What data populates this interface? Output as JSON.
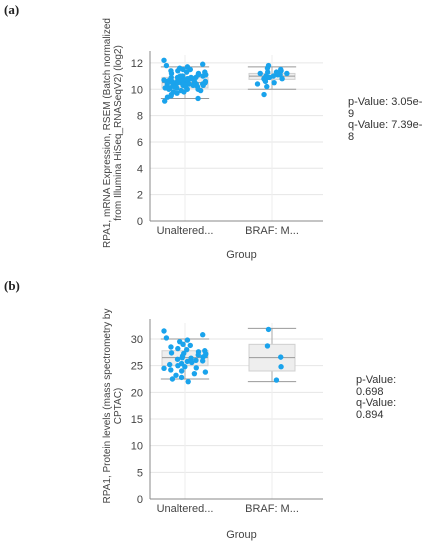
{
  "panels": [
    {
      "label": "(a)",
      "p_value": "p-Value: 3.05e-9",
      "q_value": "q-Value: 7.39e-8"
    },
    {
      "label": "(b)",
      "p_value": "p-Value: 0.698",
      "q_value": "q-Value: 0.894"
    }
  ],
  "chart_data": [
    {
      "type": "box",
      "xlabel": "Group",
      "ylabel_lines": [
        "RPA1, mRNA Expression, RSEM (Batch normalized",
        "from Illumina HiSeq_RNASeqV2) (log2)"
      ],
      "categories": [
        "Unaltered...",
        "BRAF: M..."
      ],
      "yticks": [
        0,
        2,
        4,
        6,
        8,
        10,
        12
      ],
      "ylim": [
        0,
        12.6
      ],
      "grid": true,
      "point_color": "#1aa3ec",
      "boxes": [
        {
          "category": "Unaltered...",
          "whisker_low": 9.3,
          "q1": 10.1,
          "median": 10.5,
          "q3": 10.9,
          "whisker_high": 11.7
        },
        {
          "category": "BRAF: M...",
          "whisker_low": 10.0,
          "q1": 10.75,
          "median": 11.0,
          "q3": 11.2,
          "whisker_high": 11.7
        }
      ],
      "points": [
        {
          "category": "Unaltered...",
          "values": [
            12.2,
            11.9,
            11.8,
            11.7,
            11.6,
            11.5,
            11.5,
            11.4,
            11.4,
            11.3,
            11.3,
            11.2,
            11.2,
            11.1,
            11.1,
            11.0,
            11.0,
            11.0,
            10.9,
            10.9,
            10.9,
            10.8,
            10.8,
            10.8,
            10.7,
            10.7,
            10.7,
            10.7,
            10.6,
            10.6,
            10.6,
            10.6,
            10.5,
            10.5,
            10.5,
            10.5,
            10.5,
            10.4,
            10.4,
            10.4,
            10.4,
            10.3,
            10.3,
            10.3,
            10.3,
            10.2,
            10.2,
            10.2,
            10.1,
            10.1,
            10.1,
            10.0,
            10.0,
            10.0,
            9.9,
            9.9,
            9.8,
            9.8,
            9.7,
            9.6,
            9.5,
            9.4,
            9.3,
            9.1,
            10.6,
            10.4,
            10.8,
            10.2,
            11.0,
            10.5,
            10.7,
            10.3,
            10.9,
            10.1,
            10.6,
            10.4
          ]
        },
        {
          "category": "BRAF: M...",
          "values": [
            11.8,
            11.6,
            11.5,
            11.4,
            11.3,
            11.3,
            11.2,
            11.2,
            11.1,
            11.1,
            11.0,
            11.0,
            11.0,
            10.9,
            10.9,
            10.8,
            10.8,
            10.7,
            10.6,
            10.5,
            10.4,
            10.2,
            9.6
          ]
        }
      ]
    },
    {
      "type": "box",
      "xlabel": "Group",
      "ylabel_lines": [
        "RPA1, Protein levels (mass spectrometry by",
        "CPTAC)"
      ],
      "categories": [
        "Unaltered...",
        "BRAF: M..."
      ],
      "yticks": [
        0,
        5,
        10,
        15,
        20,
        25,
        30
      ],
      "ylim": [
        0,
        33
      ],
      "grid": true,
      "point_color": "#1aa3ec",
      "boxes": [
        {
          "category": "Unaltered...",
          "whisker_low": 22.5,
          "q1": 25.0,
          "median": 26.5,
          "q3": 27.8,
          "whisker_high": 30.0
        },
        {
          "category": "BRAF: M...",
          "whisker_low": 22.0,
          "q1": 24.0,
          "median": 26.5,
          "q3": 29.0,
          "whisker_high": 32.0
        }
      ],
      "points": [
        {
          "category": "Unaltered...",
          "values": [
            31.5,
            30.8,
            30.2,
            29.8,
            29.5,
            29.0,
            28.8,
            28.5,
            28.2,
            28.0,
            27.8,
            27.6,
            27.4,
            27.2,
            27.0,
            26.8,
            26.6,
            26.5,
            26.4,
            26.2,
            26.0,
            25.8,
            25.6,
            25.4,
            25.2,
            25.0,
            24.8,
            24.5,
            24.2,
            24.0,
            23.8,
            23.5,
            23.2,
            22.8,
            22.5,
            22.0,
            26.9,
            25.9,
            27.3,
            24.6
          ]
        },
        {
          "category": "BRAF: M...",
          "values": [
            31.8,
            28.7,
            26.6,
            24.8,
            22.3
          ]
        }
      ]
    }
  ]
}
